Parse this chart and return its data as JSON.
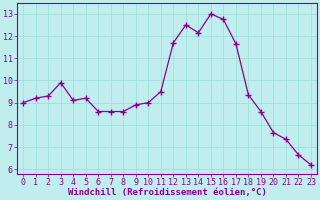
{
  "x": [
    0,
    1,
    2,
    3,
    4,
    5,
    6,
    7,
    8,
    9,
    10,
    11,
    12,
    13,
    14,
    15,
    16,
    17,
    18,
    19,
    20,
    21,
    22,
    23
  ],
  "y": [
    9.0,
    9.2,
    9.3,
    9.9,
    9.1,
    9.2,
    8.6,
    8.6,
    8.6,
    8.9,
    9.0,
    9.5,
    11.7,
    12.5,
    12.15,
    13.0,
    12.75,
    11.65,
    9.35,
    8.6,
    7.65,
    7.35,
    6.65,
    6.2
  ],
  "line_color": "#8b008b",
  "marker": "P",
  "marker_color": "#8b008b",
  "marker_size": 3,
  "bg_color": "#c0eeee",
  "grid_color": "#99dddd",
  "xlabel": "Windchill (Refroidissement éolien,°C)",
  "xlabel_color": "#8b008b",
  "tick_color": "#8b008b",
  "ylim": [
    5.8,
    13.5
  ],
  "yticks": [
    6,
    7,
    8,
    9,
    10,
    11,
    12,
    13
  ],
  "xlim": [
    -0.5,
    23.5
  ],
  "xticks": [
    0,
    1,
    2,
    3,
    4,
    5,
    6,
    7,
    8,
    9,
    10,
    11,
    12,
    13,
    14,
    15,
    16,
    17,
    18,
    19,
    20,
    21,
    22,
    23
  ],
  "xtick_labels": [
    "0",
    "1",
    "2",
    "3",
    "4",
    "5",
    "6",
    "7",
    "8",
    "9",
    "10",
    "11",
    "12",
    "13",
    "14",
    "15",
    "16",
    "17",
    "18",
    "19",
    "20",
    "21",
    "22",
    "23"
  ],
  "spine_color": "#8b008b",
  "tick_fontsize": 6,
  "xlabel_fontsize": 6.5,
  "linewidth": 0.9
}
